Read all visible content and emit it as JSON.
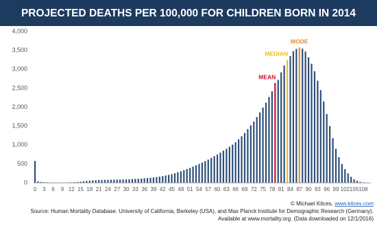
{
  "chart_data": {
    "type": "bar",
    "title": "PROJECTED DEATHS PER 100,000 FOR CHILDREN BORN IN 2014",
    "categories": [
      0,
      null,
      null,
      3,
      null,
      null,
      6,
      null,
      null,
      9,
      null,
      null,
      12,
      null,
      null,
      15,
      null,
      null,
      18,
      null,
      null,
      21,
      null,
      null,
      24,
      null,
      null,
      27,
      null,
      null,
      30,
      null,
      null,
      33,
      null,
      null,
      36,
      null,
      null,
      39,
      null,
      null,
      42,
      null,
      null,
      45,
      null,
      null,
      48,
      null,
      null,
      51,
      null,
      null,
      54,
      null,
      null,
      57,
      null,
      null,
      60,
      null,
      null,
      63,
      null,
      null,
      66,
      null,
      null,
      69,
      null,
      null,
      72,
      null,
      null,
      75,
      null,
      null,
      78,
      null,
      null,
      81,
      null,
      null,
      84,
      null,
      null,
      87,
      null,
      null,
      90,
      null,
      null,
      93,
      null,
      null,
      96,
      null,
      null,
      99,
      null,
      null,
      102,
      null,
      null,
      105,
      null,
      null,
      108,
      null,
      null
    ],
    "values": [
      580,
      40,
      25,
      18,
      14,
      12,
      11,
      10,
      10,
      10,
      11,
      12,
      14,
      18,
      24,
      32,
      42,
      52,
      60,
      66,
      70,
      74,
      76,
      78,
      80,
      82,
      84,
      86,
      88,
      90,
      93,
      96,
      100,
      104,
      108,
      113,
      119,
      126,
      134,
      143,
      153,
      165,
      178,
      193,
      210,
      230,
      255,
      280,
      305,
      335,
      365,
      395,
      430,
      465,
      500,
      535,
      575,
      615,
      660,
      705,
      750,
      800,
      850,
      900,
      955,
      1010,
      1075,
      1150,
      1230,
      1320,
      1420,
      1520,
      1620,
      1740,
      1860,
      1990,
      2120,
      2270,
      2420,
      2640,
      2720,
      2920,
      3100,
      3250,
      3350,
      3480,
      3540,
      3580,
      3550,
      3470,
      3320,
      3150,
      2950,
      2700,
      2450,
      2150,
      1820,
      1500,
      1180,
      900,
      680,
      500,
      360,
      250,
      160,
      95,
      55,
      28,
      14,
      7,
      3
    ],
    "color": "#2b4d78",
    "highlights": [
      {
        "label": "MEAN",
        "index": 79,
        "color": "#c8102e"
      },
      {
        "label": "MEDIAN",
        "index": 83,
        "color": "#e6bf2b"
      },
      {
        "label": "MODE",
        "index": 87,
        "color": "#e8892a"
      }
    ],
    "ylim": [
      0,
      4000
    ],
    "yticks": [
      0,
      500,
      {
        "value": 1000,
        "label": "1,000"
      },
      {
        "value": 1500,
        "label": "1,500"
      },
      {
        "value": 2000,
        "label": "2,000"
      },
      {
        "value": 2500,
        "label": "2,500"
      },
      {
        "value": 3000,
        "label": "3,000"
      },
      {
        "value": 3500,
        "label": "3,500"
      },
      {
        "value": 4000,
        "label": "4,000"
      }
    ],
    "grid": false,
    "credit": "© Michael Kitces, ",
    "credit_link": "www.kitces.com",
    "source": [
      "Source: Human Mortality Database. University of California, Berkeley (USA), and Max Planck Institute for Demographic Research (Germany).",
      "Available at www.mortality.org. (Data downloaded on 12/1/2016)"
    ]
  }
}
